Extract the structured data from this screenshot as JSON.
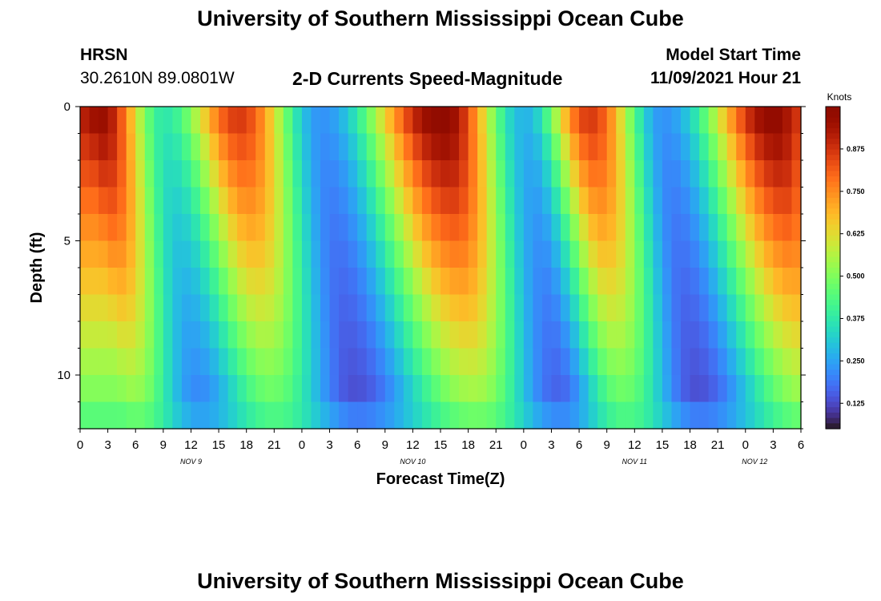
{
  "title": "University of Southern Mississippi Ocean Cube",
  "station": {
    "name": "HRSN",
    "coords": "30.2610N  89.0801W"
  },
  "plot_title": "2-D Currents Speed-Magnitude",
  "model_start": {
    "label": "Model Start Time",
    "value": "11/09/2021 Hour 21"
  },
  "chart_data": {
    "type": "heatmap",
    "title": "2-D Currents Speed-Magnitude",
    "xlabel": "Forecast Time(Z)",
    "ylabel": "Depth (ft)",
    "x_tick_labels": [
      "0",
      "3",
      "6",
      "9",
      "12",
      "15",
      "18",
      "21",
      "0",
      "3",
      "6",
      "9",
      "12",
      "15",
      "18",
      "21",
      "0",
      "3",
      "6",
      "9",
      "12",
      "15",
      "18",
      "21",
      "0",
      "3",
      "6"
    ],
    "x_hours": [
      0,
      78
    ],
    "day_labels": [
      {
        "label": "NOV 9",
        "hour": 12
      },
      {
        "label": "NOV 10",
        "hour": 36
      },
      {
        "label": "NOV 11",
        "hour": 60
      },
      {
        "label": "NOV 12",
        "hour": 73
      }
    ],
    "y_ticks": [
      0,
      5,
      10
    ],
    "y_range_ft": [
      0,
      12
    ],
    "colorbar": {
      "unit": "Knots",
      "range": [
        0.05,
        1.0
      ],
      "ticks": [
        "0.875",
        "0.750",
        "0.625",
        "0.500",
        "0.375",
        "0.250",
        "0.125"
      ],
      "colormap": "turbo"
    },
    "peaks_surface": [
      {
        "hour": 2,
        "knots": 0.95
      },
      {
        "hour": 17,
        "knots": 0.85
      },
      {
        "hour": 39,
        "knots": 0.98
      },
      {
        "hour": 55,
        "knots": 0.85
      },
      {
        "hour": 75,
        "knots": 0.97
      }
    ],
    "troughs_surface": [
      {
        "hour": 9,
        "knots": 0.35
      },
      {
        "hour": 26,
        "knots": 0.2
      },
      {
        "hour": 48,
        "knots": 0.25
      },
      {
        "hour": 63,
        "knots": 0.2
      }
    ]
  },
  "footer_title": "University of Southern Mississippi Ocean Cube"
}
